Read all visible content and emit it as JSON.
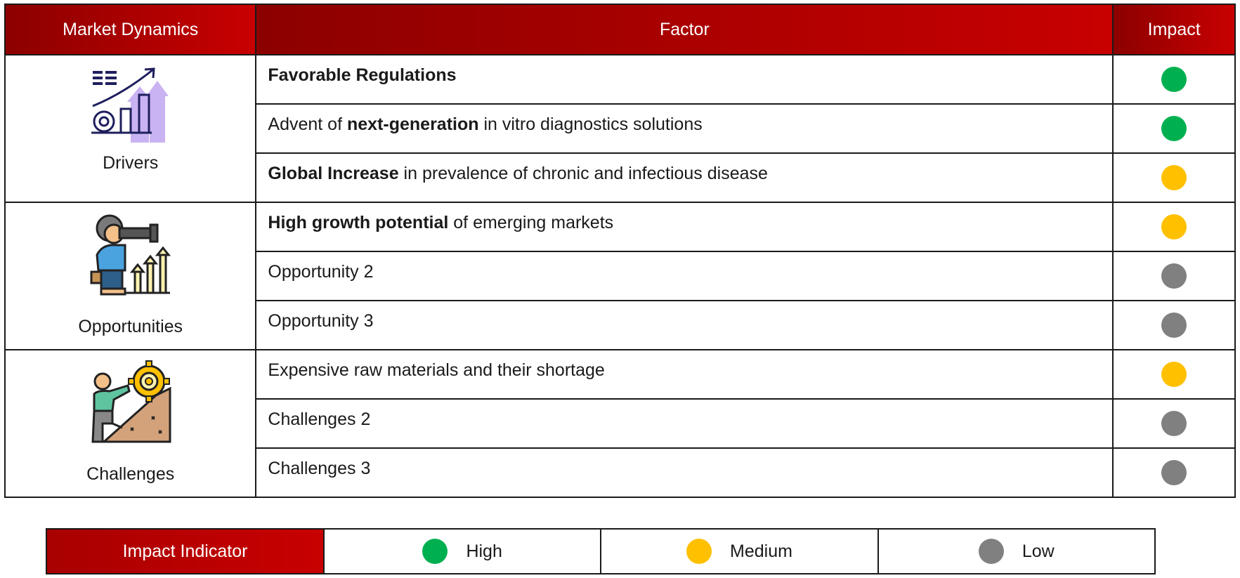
{
  "header": {
    "col_dynamics": "Market Dynamics",
    "col_factor": "Factor",
    "col_impact": "Impact"
  },
  "colors": {
    "high": "#00b050",
    "medium": "#ffc000",
    "low": "#808080",
    "header_red": "#c00000"
  },
  "groups": [
    {
      "label": "Drivers",
      "icon": "growth-chart-icon",
      "rows": [
        {
          "pre": "",
          "bold": "Favorable Regulations",
          "post": "",
          "impact": "high"
        },
        {
          "pre": "Advent of ",
          "bold": "next-generation",
          "post": " in vitro diagnostics solutions",
          "impact": "high"
        },
        {
          "pre": "",
          "bold": "Global Increase",
          "post": " in prevalence of chronic and infectious disease",
          "impact": "medium"
        }
      ]
    },
    {
      "label": "Opportunities",
      "icon": "telescope-person-icon",
      "rows": [
        {
          "pre": "",
          "bold": "High growth potential",
          "post": " of emerging markets",
          "impact": "medium"
        },
        {
          "pre": "Opportunity 2",
          "bold": "",
          "post": "",
          "impact": "low"
        },
        {
          "pre": "Opportunity 3",
          "bold": "",
          "post": "",
          "impact": "low"
        }
      ]
    },
    {
      "label": "Challenges",
      "icon": "climbing-gear-icon",
      "rows": [
        {
          "pre": "Expensive raw materials and their shortage",
          "bold": "",
          "post": "",
          "impact": "medium"
        },
        {
          "pre": "Challenges 2",
          "bold": "",
          "post": "",
          "impact": "low"
        },
        {
          "pre": "Challenges 3",
          "bold": "",
          "post": "",
          "impact": "low"
        }
      ]
    }
  ],
  "legend": {
    "title": "Impact Indicator",
    "items": [
      {
        "label": "High",
        "level": "high"
      },
      {
        "label": "Medium",
        "level": "medium"
      },
      {
        "label": "Low",
        "level": "low"
      }
    ]
  }
}
